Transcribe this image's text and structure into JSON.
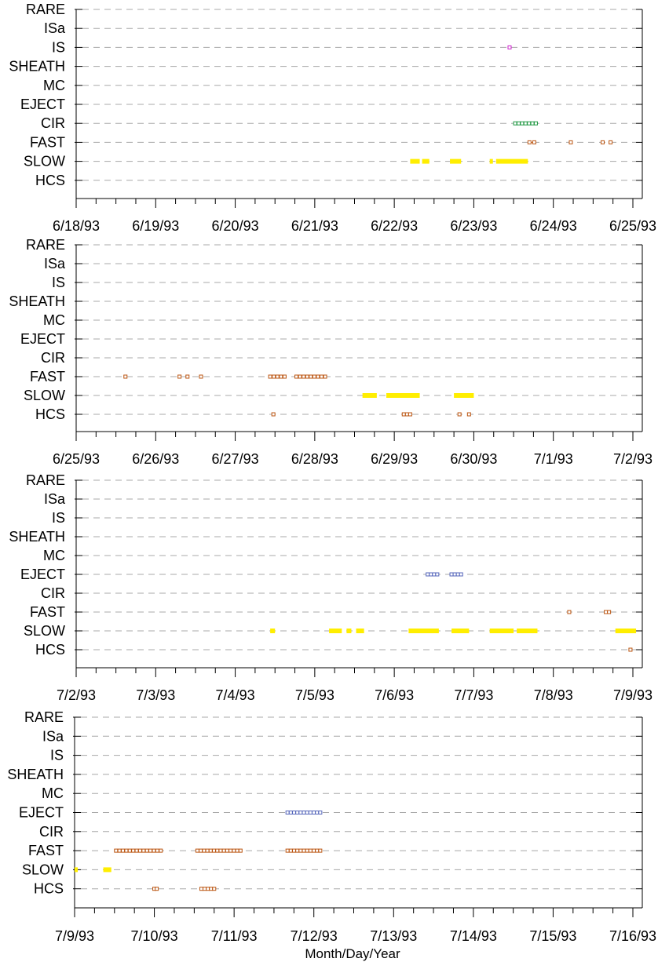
{
  "chart_data": {
    "type": "scatter",
    "xlabel": "Month/Day/Year",
    "categories": [
      "RARE",
      "ISa",
      "IS",
      "SHEATH",
      "MC",
      "EJECT",
      "CIR",
      "FAST",
      "SLOW",
      "HCS"
    ],
    "colors": {
      "IS": "#cc22cc",
      "CIR": "#229944",
      "FAST": "#bb5511",
      "SLOW": "#ffee00",
      "HCS": "#bb5511",
      "EJECT": "#5566bb"
    },
    "panels": [
      {
        "date_labels": [
          "6/18/93",
          "6/19/93",
          "6/20/93",
          "6/21/93",
          "6/22/93",
          "6/23/93",
          "6/24/93",
          "6/25/93"
        ],
        "series": [
          {
            "category": "IS",
            "style": "square",
            "ranges": [
              [
                5.43,
                5.48
              ]
            ]
          },
          {
            "category": "CIR",
            "style": "square",
            "ranges": [
              [
                5.5,
                5.8
              ]
            ]
          },
          {
            "category": "FAST",
            "style": "square",
            "ranges": [
              [
                5.68,
                5.78
              ],
              [
                6.2,
                6.24
              ],
              [
                6.6,
                6.66
              ],
              [
                6.7,
                6.74
              ]
            ]
          },
          {
            "category": "SLOW",
            "style": "bar",
            "ranges": [
              [
                4.2,
                4.32
              ],
              [
                4.35,
                4.44
              ],
              [
                4.7,
                4.84
              ],
              [
                5.2,
                5.24
              ],
              [
                5.28,
                5.68
              ]
            ]
          }
        ]
      },
      {
        "date_labels": [
          "6/25/93",
          "6/26/93",
          "6/27/93",
          "6/28/93",
          "6/29/93",
          "6/30/93",
          "7/1/93",
          "7/2/93"
        ],
        "series": [
          {
            "category": "FAST",
            "style": "square",
            "ranges": [
              [
                0.6,
                0.63
              ],
              [
                1.28,
                1.31
              ],
              [
                1.38,
                1.44
              ],
              [
                1.55,
                1.61
              ],
              [
                2.42,
                2.64
              ],
              [
                2.75,
                3.15
              ]
            ]
          },
          {
            "category": "SLOW",
            "style": "bar",
            "ranges": [
              [
                3.6,
                3.78
              ],
              [
                3.9,
                4.32
              ],
              [
                4.75,
                5.0
              ]
            ]
          },
          {
            "category": "HCS",
            "style": "square",
            "ranges": [
              [
                2.46,
                2.49
              ],
              [
                4.1,
                4.22
              ],
              [
                4.8,
                4.83
              ],
              [
                4.92,
                4.95
              ]
            ]
          }
        ]
      },
      {
        "date_labels": [
          "7/2/93",
          "7/3/93",
          "7/4/93",
          "7/5/93",
          "7/6/93",
          "7/7/93",
          "7/8/93",
          "7/9/93"
        ],
        "series": [
          {
            "category": "EJECT",
            "style": "square",
            "ranges": [
              [
                4.4,
                4.56
              ],
              [
                4.7,
                4.86
              ]
            ]
          },
          {
            "category": "FAST",
            "style": "square",
            "ranges": [
              [
                6.18,
                6.22
              ],
              [
                6.64,
                6.72
              ]
            ]
          },
          {
            "category": "SLOW",
            "style": "bar",
            "ranges": [
              [
                2.44,
                2.5
              ],
              [
                3.18,
                3.34
              ],
              [
                3.4,
                3.46
              ],
              [
                3.52,
                3.62
              ],
              [
                4.18,
                4.56
              ],
              [
                4.72,
                4.94
              ],
              [
                5.2,
                5.5
              ],
              [
                5.54,
                5.8
              ],
              [
                6.78,
                7.04
              ]
            ]
          },
          {
            "category": "HCS",
            "style": "square",
            "ranges": [
              [
                6.95,
                6.98
              ]
            ]
          }
        ]
      },
      {
        "date_labels": [
          "7/9/93",
          "7/10/93",
          "7/11/93",
          "7/12/93",
          "7/13/93",
          "7/14/93",
          "7/15/93",
          "7/16/93"
        ],
        "series": [
          {
            "category": "EJECT",
            "style": "square",
            "ranges": [
              [
                2.65,
                3.1
              ]
            ]
          },
          {
            "category": "FAST",
            "style": "square",
            "ranges": [
              [
                0.5,
                1.1
              ],
              [
                1.52,
                2.1
              ],
              [
                2.65,
                3.1
              ]
            ]
          },
          {
            "category": "SLOW",
            "style": "bar",
            "ranges": [
              [
                0.0,
                0.02
              ],
              [
                0.36,
                0.46
              ]
            ]
          },
          {
            "category": "HCS",
            "style": "square",
            "ranges": [
              [
                0.98,
                1.05
              ],
              [
                1.57,
                1.77
              ]
            ]
          }
        ]
      }
    ]
  }
}
